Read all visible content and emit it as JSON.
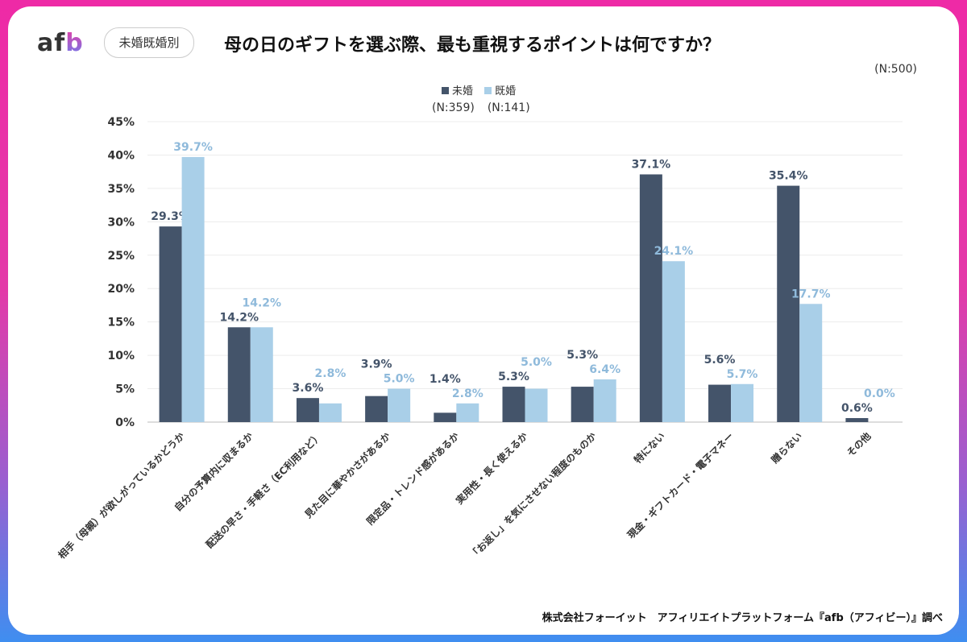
{
  "logo": "afb",
  "badge": "未婚既婚別",
  "title": "母の日のギフトを選ぶ際、最も重視するポイントは何ですか？",
  "n_total": "(N:500)",
  "footer": "株式会社フォーイット　アフィリエイトプラットフォーム『afb（アフィビー）』調べ",
  "colors": {
    "unmarried": "#44546a",
    "married": "#a9cfe8",
    "border_top": "#ee2aa6",
    "border_bottom": "#3f8ef0"
  },
  "chart_data": {
    "type": "bar",
    "ylim": [
      0,
      45
    ],
    "yticks": [
      "0%",
      "5%",
      "10%",
      "15%",
      "20%",
      "25%",
      "30%",
      "35%",
      "40%",
      "45%"
    ],
    "grid": true,
    "legend_placement": "top-center",
    "categories": [
      "相手（母親）が欲しがっているかどうか",
      "自分の予算内に収まるか",
      "配送の早さ・手軽さ（EC利用など）",
      "見た目に華やかさがあるか",
      "限定品・トレンド感があるか",
      "実用性・長く使えるか",
      "「お返し」を気にさせない程度のものか",
      "特にない",
      "現金・ギフトカード・電子マネー",
      "贈らない",
      "その他"
    ],
    "series": [
      {
        "name": "未婚",
        "n": "(N:359)",
        "values": [
          29.3,
          14.2,
          3.6,
          3.9,
          1.4,
          5.3,
          5.3,
          37.1,
          5.6,
          35.4,
          0.6
        ]
      },
      {
        "name": "既婚",
        "n": "(N:141)",
        "values": [
          39.7,
          14.2,
          2.8,
          5.0,
          2.8,
          5.0,
          6.4,
          24.1,
          5.7,
          17.7,
          0.0
        ]
      }
    ]
  }
}
